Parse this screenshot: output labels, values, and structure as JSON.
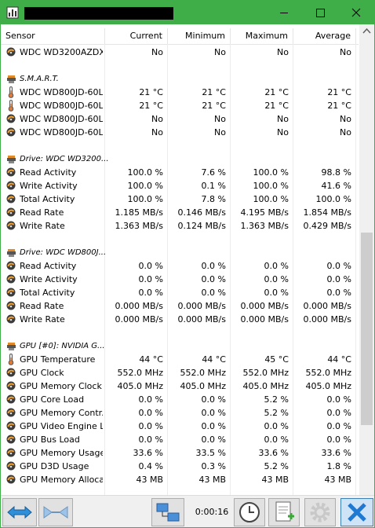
{
  "columns": [
    "Sensor",
    "Current",
    "Minimum",
    "Maximum",
    "Average"
  ],
  "sections": [
    {
      "rows": [
        {
          "icon": "sensor",
          "label": "WDC WD3200AZDX...",
          "values": [
            "No",
            "No",
            "No",
            "No"
          ]
        }
      ]
    },
    {
      "header": "S.M.A.R.T.",
      "rows": [
        {
          "icon": "thermometer",
          "label": "WDC WD800JD-60L...",
          "values": [
            "21 °C",
            "21 °C",
            "21 °C",
            "21 °C"
          ]
        },
        {
          "icon": "thermometer",
          "label": "WDC WD800JD-60L...",
          "values": [
            "21 °C",
            "21 °C",
            "21 °C",
            "21 °C"
          ]
        },
        {
          "icon": "sensor",
          "label": "WDC WD800JD-60L...",
          "values": [
            "No",
            "No",
            "No",
            "No"
          ]
        },
        {
          "icon": "sensor",
          "label": "WDC WD800JD-60L...",
          "values": [
            "No",
            "No",
            "No",
            "No"
          ]
        }
      ]
    },
    {
      "header": "Drive: WDC WD3200...",
      "rows": [
        {
          "icon": "sensor",
          "label": "Read Activity",
          "values": [
            "100.0 %",
            "7.6 %",
            "100.0 %",
            "98.8 %"
          ]
        },
        {
          "icon": "sensor",
          "label": "Write Activity",
          "values": [
            "100.0 %",
            "0.1 %",
            "100.0 %",
            "41.6 %"
          ]
        },
        {
          "icon": "sensor",
          "label": "Total Activity",
          "values": [
            "100.0 %",
            "7.8 %",
            "100.0 %",
            "100.0 %"
          ]
        },
        {
          "icon": "sensor",
          "label": "Read Rate",
          "values": [
            "1.185 MB/s",
            "0.146 MB/s",
            "4.195 MB/s",
            "1.854 MB/s"
          ]
        },
        {
          "icon": "sensor",
          "label": "Write Rate",
          "values": [
            "1.363 MB/s",
            "0.124 MB/s",
            "1.363 MB/s",
            "0.429 MB/s"
          ]
        }
      ]
    },
    {
      "header": "Drive: WDC WD800J...",
      "rows": [
        {
          "icon": "sensor",
          "label": "Read Activity",
          "values": [
            "0.0 %",
            "0.0 %",
            "0.0 %",
            "0.0 %"
          ]
        },
        {
          "icon": "sensor",
          "label": "Write Activity",
          "values": [
            "0.0 %",
            "0.0 %",
            "0.0 %",
            "0.0 %"
          ]
        },
        {
          "icon": "sensor",
          "label": "Total Activity",
          "values": [
            "0.0 %",
            "0.0 %",
            "0.0 %",
            "0.0 %"
          ]
        },
        {
          "icon": "sensor",
          "label": "Read Rate",
          "values": [
            "0.000 MB/s",
            "0.000 MB/s",
            "0.000 MB/s",
            "0.000 MB/s"
          ]
        },
        {
          "icon": "sensor",
          "label": "Write Rate",
          "values": [
            "0.000 MB/s",
            "0.000 MB/s",
            "0.000 MB/s",
            "0.000 MB/s"
          ]
        }
      ]
    },
    {
      "header": "GPU [#0]: NVIDIA G...",
      "rows": [
        {
          "icon": "thermometer",
          "label": "GPU Temperature",
          "values": [
            "44 °C",
            "44 °C",
            "45 °C",
            "44 °C"
          ]
        },
        {
          "icon": "sensor",
          "label": "GPU Clock",
          "values": [
            "552.0 MHz",
            "552.0 MHz",
            "552.0 MHz",
            "552.0 MHz"
          ]
        },
        {
          "icon": "sensor",
          "label": "GPU Memory Clock",
          "values": [
            "405.0 MHz",
            "405.0 MHz",
            "405.0 MHz",
            "405.0 MHz"
          ]
        },
        {
          "icon": "sensor",
          "label": "GPU Core Load",
          "values": [
            "0.0 %",
            "0.0 %",
            "5.2 %",
            "0.0 %"
          ]
        },
        {
          "icon": "sensor",
          "label": "GPU Memory Contr...",
          "values": [
            "0.0 %",
            "0.0 %",
            "5.2 %",
            "0.0 %"
          ]
        },
        {
          "icon": "sensor",
          "label": "GPU Video Engine L...",
          "values": [
            "0.0 %",
            "0.0 %",
            "0.0 %",
            "0.0 %"
          ]
        },
        {
          "icon": "sensor",
          "label": "GPU Bus Load",
          "values": [
            "0.0 %",
            "0.0 %",
            "0.0 %",
            "0.0 %"
          ]
        },
        {
          "icon": "sensor",
          "label": "GPU Memory Usage",
          "values": [
            "33.6 %",
            "33.5 %",
            "33.6 %",
            "33.6 %"
          ]
        },
        {
          "icon": "sensor",
          "label": "GPU D3D Usage",
          "values": [
            "0.4 %",
            "0.3 %",
            "5.2 %",
            "1.8 %"
          ]
        },
        {
          "icon": "sensor",
          "label": "GPU Memory Alloca...",
          "values": [
            "43 MB",
            "43 MB",
            "43 MB",
            "43 MB"
          ]
        }
      ]
    }
  ],
  "toolbar": {
    "elapsed": "0:00:16"
  }
}
